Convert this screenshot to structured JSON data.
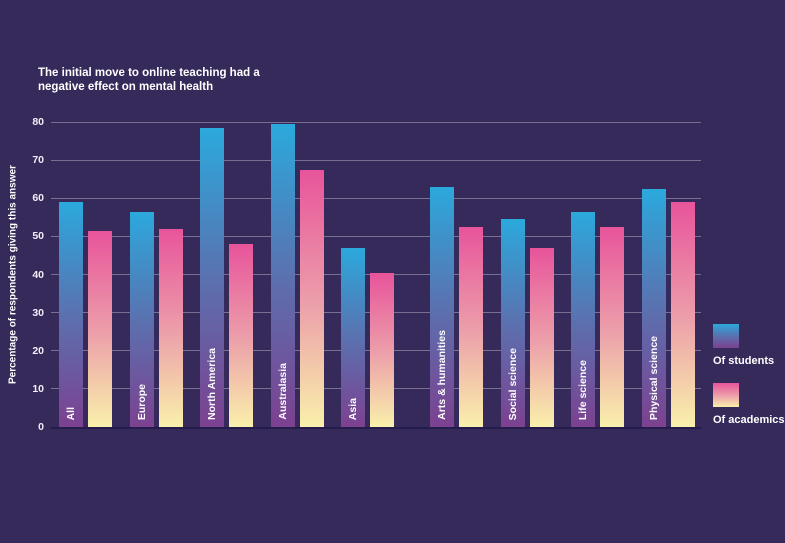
{
  "chart_data": {
    "type": "bar",
    "title": "The initial move to online teaching had a\nnegative effect on mental health",
    "xlabel": "",
    "ylabel": "Percentage of respondents giving this answer",
    "ylim": [
      0,
      80
    ],
    "yticks": [
      0,
      10,
      20,
      30,
      40,
      50,
      60,
      70,
      80
    ],
    "grid": true,
    "legend_position": "right",
    "categories": [
      "All",
      "Europe",
      "North America",
      "Australasia",
      "Asia",
      "Arts & humanities",
      "Social science",
      "Life science",
      "Physical science"
    ],
    "category_groups": {
      "regions": [
        "All",
        "Europe",
        "North America",
        "Australasia",
        "Asia"
      ],
      "disciplines": [
        "Arts & humanities",
        "Social science",
        "Life science",
        "Physical science"
      ]
    },
    "series": [
      {
        "name": "Of students",
        "values": [
          59,
          56.5,
          78.5,
          79.5,
          47,
          63,
          54.5,
          56.5,
          62.5
        ],
        "gradient": [
          "#2BA9DC",
          "#5C6FAE",
          "#7C4190"
        ]
      },
      {
        "name": "Of academics",
        "values": [
          51.5,
          52,
          48,
          67.5,
          40.5,
          52.5,
          47,
          52.5,
          59
        ],
        "gradient": [
          "#E8549B",
          "#EC9FAA",
          "#F9F0AB"
        ]
      }
    ]
  },
  "colors": {
    "background": "#362A5B",
    "gridline": "rgba(255,255,255,0.33)",
    "axis_line": "#231C4D",
    "text": "#FFFFFF"
  }
}
